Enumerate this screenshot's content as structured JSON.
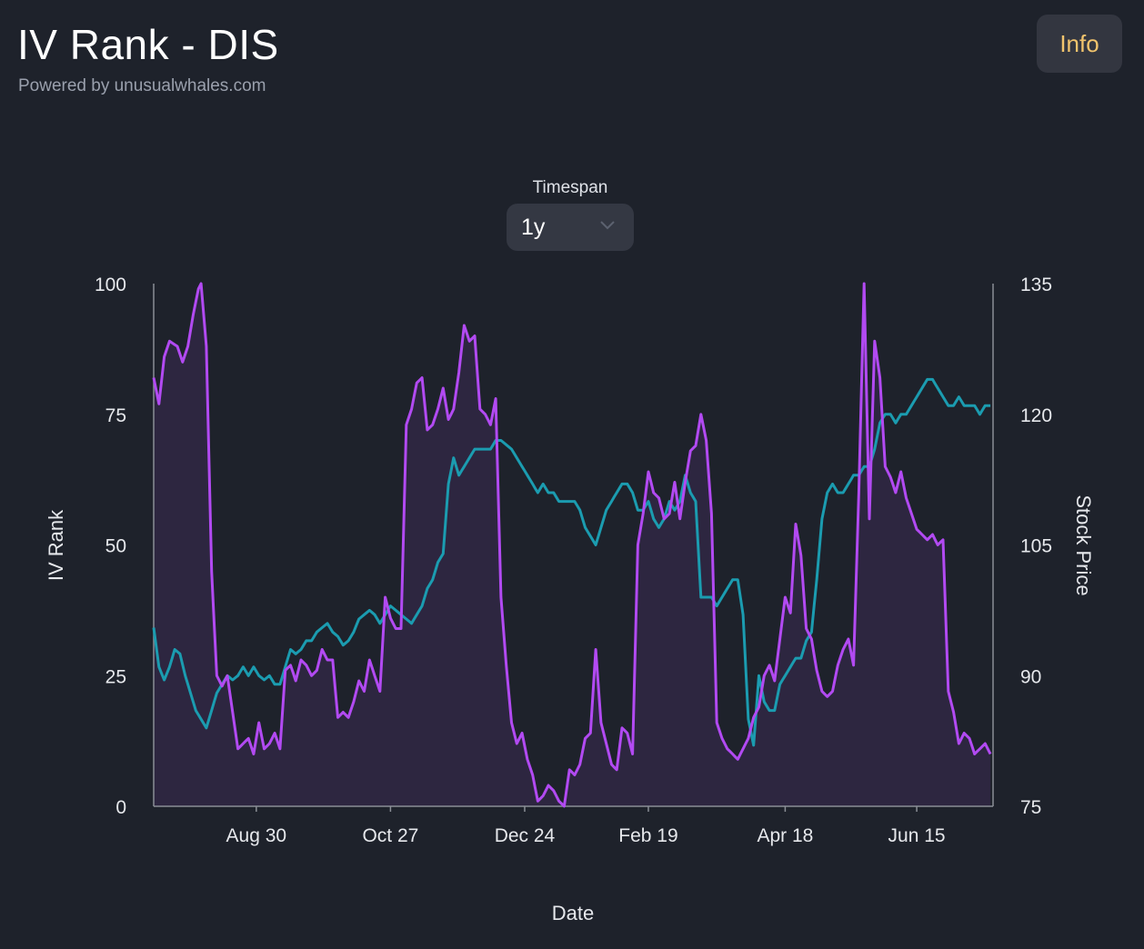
{
  "header": {
    "title": "IV Rank - DIS",
    "subtitle": "Powered by unusualwhales.com",
    "info_label": "Info"
  },
  "controls": {
    "timespan_label": "Timespan",
    "timespan_value": "1y"
  },
  "colors": {
    "background": "#1e222b",
    "iv_rank": "#b24af2",
    "iv_fill": "#2d2640",
    "stock_price": "#1b9cb0",
    "info_text": "#f2c46d"
  },
  "chart_data": {
    "type": "line",
    "title": "IV Rank - DIS",
    "xlabel": "Date",
    "ylabel": "IV Rank",
    "y2label": "Stock Price",
    "ylim": [
      0,
      100
    ],
    "y2lim": [
      75,
      135
    ],
    "yticks": [
      "0",
      "25",
      "50",
      "75",
      "100"
    ],
    "y2ticks": [
      "75",
      "90",
      "105",
      "120",
      "135"
    ],
    "xtick_labels": [
      "Aug 30",
      "Oct 27",
      "Dec 24",
      "Feb 19",
      "Apr 18",
      "Jun 15"
    ],
    "xtick_index": [
      39,
      90,
      141,
      188,
      240,
      290
    ],
    "n_points": 320,
    "series": [
      {
        "name": "IV Rank",
        "axis": "left",
        "area_fill": true,
        "keypoints": [
          [
            0,
            82
          ],
          [
            2,
            77
          ],
          [
            4,
            86
          ],
          [
            6,
            89
          ],
          [
            9,
            88
          ],
          [
            11,
            85
          ],
          [
            13,
            88
          ],
          [
            15,
            94
          ],
          [
            17,
            99
          ],
          [
            18,
            100
          ],
          [
            20,
            88
          ],
          [
            22,
            45
          ],
          [
            24,
            25
          ],
          [
            26,
            23
          ],
          [
            28,
            25
          ],
          [
            30,
            18
          ],
          [
            32,
            11
          ],
          [
            34,
            12
          ],
          [
            36,
            13
          ],
          [
            38,
            10
          ],
          [
            40,
            16
          ],
          [
            42,
            11
          ],
          [
            44,
            12
          ],
          [
            46,
            14
          ],
          [
            48,
            11
          ],
          [
            50,
            26
          ],
          [
            52,
            27
          ],
          [
            54,
            24
          ],
          [
            56,
            28
          ],
          [
            58,
            27
          ],
          [
            60,
            25
          ],
          [
            62,
            26
          ],
          [
            64,
            30
          ],
          [
            66,
            28
          ],
          [
            68,
            28
          ],
          [
            70,
            17
          ],
          [
            72,
            18
          ],
          [
            74,
            17
          ],
          [
            76,
            20
          ],
          [
            78,
            24
          ],
          [
            80,
            22
          ],
          [
            82,
            28
          ],
          [
            84,
            25
          ],
          [
            86,
            22
          ],
          [
            88,
            40
          ],
          [
            90,
            36
          ],
          [
            92,
            34
          ],
          [
            94,
            34
          ],
          [
            96,
            73
          ],
          [
            98,
            76
          ],
          [
            100,
            81
          ],
          [
            102,
            82
          ],
          [
            104,
            72
          ],
          [
            106,
            73
          ],
          [
            108,
            76
          ],
          [
            110,
            80
          ],
          [
            112,
            74
          ],
          [
            114,
            76
          ],
          [
            116,
            83
          ],
          [
            118,
            92
          ],
          [
            120,
            89
          ],
          [
            122,
            90
          ],
          [
            124,
            76
          ],
          [
            126,
            75
          ],
          [
            128,
            73
          ],
          [
            130,
            78
          ],
          [
            132,
            40
          ],
          [
            134,
            27
          ],
          [
            136,
            16
          ],
          [
            138,
            12
          ],
          [
            140,
            14
          ],
          [
            142,
            9
          ],
          [
            144,
            6
          ],
          [
            146,
            1
          ],
          [
            148,
            2
          ],
          [
            150,
            4
          ],
          [
            152,
            3
          ],
          [
            154,
            1
          ],
          [
            156,
            0
          ],
          [
            158,
            7
          ],
          [
            160,
            6
          ],
          [
            162,
            8
          ],
          [
            164,
            13
          ],
          [
            166,
            14
          ],
          [
            168,
            30
          ],
          [
            170,
            16
          ],
          [
            172,
            12
          ],
          [
            174,
            8
          ],
          [
            176,
            7
          ],
          [
            178,
            15
          ],
          [
            180,
            14
          ],
          [
            182,
            10
          ],
          [
            184,
            50
          ],
          [
            186,
            56
          ],
          [
            188,
            64
          ],
          [
            190,
            60
          ],
          [
            192,
            59
          ],
          [
            194,
            55
          ],
          [
            196,
            56
          ],
          [
            198,
            62
          ],
          [
            200,
            55
          ],
          [
            202,
            62
          ],
          [
            204,
            68
          ],
          [
            206,
            69
          ],
          [
            208,
            75
          ],
          [
            210,
            70
          ],
          [
            212,
            56
          ],
          [
            214,
            16
          ],
          [
            216,
            13
          ],
          [
            218,
            11
          ],
          [
            220,
            10
          ],
          [
            222,
            9
          ],
          [
            224,
            11
          ],
          [
            226,
            13
          ],
          [
            228,
            17
          ],
          [
            230,
            19
          ],
          [
            232,
            25
          ],
          [
            234,
            27
          ],
          [
            236,
            24
          ],
          [
            238,
            32
          ],
          [
            240,
            40
          ],
          [
            242,
            37
          ],
          [
            244,
            54
          ],
          [
            246,
            48
          ],
          [
            248,
            34
          ],
          [
            250,
            32
          ],
          [
            252,
            26
          ],
          [
            254,
            22
          ],
          [
            256,
            21
          ],
          [
            258,
            22
          ],
          [
            260,
            27
          ],
          [
            262,
            30
          ],
          [
            264,
            32
          ],
          [
            266,
            27
          ],
          [
            268,
            60
          ],
          [
            270,
            100
          ],
          [
            272,
            55
          ],
          [
            274,
            89
          ],
          [
            276,
            82
          ],
          [
            278,
            65
          ],
          [
            280,
            63
          ],
          [
            282,
            60
          ],
          [
            284,
            64
          ],
          [
            286,
            59
          ],
          [
            288,
            56
          ],
          [
            290,
            53
          ],
          [
            292,
            52
          ],
          [
            294,
            51
          ],
          [
            296,
            52
          ],
          [
            298,
            50
          ],
          [
            300,
            51
          ],
          [
            302,
            22
          ],
          [
            304,
            18
          ],
          [
            306,
            12
          ],
          [
            308,
            14
          ],
          [
            310,
            13
          ],
          [
            312,
            10
          ],
          [
            314,
            11
          ],
          [
            316,
            12
          ],
          [
            318,
            10
          ]
        ]
      },
      {
        "name": "Stock Price",
        "axis": "right",
        "area_fill": false,
        "keypoints": [
          [
            0,
            95.5
          ],
          [
            2,
            91
          ],
          [
            4,
            89.5
          ],
          [
            6,
            91
          ],
          [
            8,
            93
          ],
          [
            10,
            92.5
          ],
          [
            12,
            90
          ],
          [
            14,
            88
          ],
          [
            16,
            86
          ],
          [
            18,
            85
          ],
          [
            20,
            84
          ],
          [
            22,
            86
          ],
          [
            24,
            88
          ],
          [
            26,
            89
          ],
          [
            28,
            90
          ],
          [
            30,
            89.5
          ],
          [
            32,
            90
          ],
          [
            34,
            91
          ],
          [
            36,
            90
          ],
          [
            38,
            91
          ],
          [
            40,
            90
          ],
          [
            42,
            89.5
          ],
          [
            44,
            90
          ],
          [
            46,
            89
          ],
          [
            48,
            89
          ],
          [
            50,
            91
          ],
          [
            52,
            93
          ],
          [
            54,
            92.5
          ],
          [
            56,
            93
          ],
          [
            58,
            94
          ],
          [
            60,
            94
          ],
          [
            62,
            95
          ],
          [
            64,
            95.5
          ],
          [
            66,
            96
          ],
          [
            68,
            95
          ],
          [
            70,
            94.5
          ],
          [
            72,
            93.5
          ],
          [
            74,
            94
          ],
          [
            76,
            95
          ],
          [
            78,
            96.5
          ],
          [
            80,
            97
          ],
          [
            82,
            97.5
          ],
          [
            84,
            97
          ],
          [
            86,
            96
          ],
          [
            88,
            97
          ],
          [
            90,
            98
          ],
          [
            92,
            97.5
          ],
          [
            94,
            97
          ],
          [
            96,
            96.5
          ],
          [
            98,
            96
          ],
          [
            100,
            97
          ],
          [
            102,
            98
          ],
          [
            104,
            100
          ],
          [
            106,
            101
          ],
          [
            108,
            103
          ],
          [
            110,
            104
          ],
          [
            112,
            112
          ],
          [
            114,
            115
          ],
          [
            116,
            113
          ],
          [
            118,
            114
          ],
          [
            120,
            115
          ],
          [
            122,
            116
          ],
          [
            124,
            116
          ],
          [
            126,
            116
          ],
          [
            128,
            116
          ],
          [
            130,
            117
          ],
          [
            132,
            117
          ],
          [
            134,
            116.5
          ],
          [
            136,
            116
          ],
          [
            138,
            115
          ],
          [
            140,
            114
          ],
          [
            142,
            113
          ],
          [
            144,
            112
          ],
          [
            146,
            111
          ],
          [
            148,
            112
          ],
          [
            150,
            111
          ],
          [
            152,
            111
          ],
          [
            154,
            110
          ],
          [
            156,
            110
          ],
          [
            158,
            110
          ],
          [
            160,
            110
          ],
          [
            162,
            109
          ],
          [
            164,
            107
          ],
          [
            166,
            106
          ],
          [
            168,
            105
          ],
          [
            170,
            107
          ],
          [
            172,
            109
          ],
          [
            174,
            110
          ],
          [
            176,
            111
          ],
          [
            178,
            112
          ],
          [
            180,
            112
          ],
          [
            182,
            111
          ],
          [
            184,
            109
          ],
          [
            186,
            109
          ],
          [
            188,
            110
          ],
          [
            190,
            108
          ],
          [
            192,
            107
          ],
          [
            194,
            108
          ],
          [
            196,
            110
          ],
          [
            198,
            109
          ],
          [
            200,
            110
          ],
          [
            202,
            113
          ],
          [
            204,
            111
          ],
          [
            206,
            110
          ],
          [
            208,
            99
          ],
          [
            210,
            99
          ],
          [
            212,
            99
          ],
          [
            214,
            98
          ],
          [
            216,
            99
          ],
          [
            218,
            100
          ],
          [
            220,
            101
          ],
          [
            222,
            101
          ],
          [
            224,
            97
          ],
          [
            226,
            85
          ],
          [
            228,
            82
          ],
          [
            230,
            90
          ],
          [
            232,
            87
          ],
          [
            234,
            86
          ],
          [
            236,
            86
          ],
          [
            238,
            89
          ],
          [
            240,
            90
          ],
          [
            242,
            91
          ],
          [
            244,
            92
          ],
          [
            246,
            92
          ],
          [
            248,
            94
          ],
          [
            250,
            95
          ],
          [
            252,
            101
          ],
          [
            254,
            108
          ],
          [
            256,
            111
          ],
          [
            258,
            112
          ],
          [
            260,
            111
          ],
          [
            262,
            111
          ],
          [
            264,
            112
          ],
          [
            266,
            113
          ],
          [
            268,
            113
          ],
          [
            270,
            114
          ],
          [
            272,
            114
          ],
          [
            274,
            116
          ],
          [
            276,
            119
          ],
          [
            278,
            120
          ],
          [
            280,
            120
          ],
          [
            282,
            119
          ],
          [
            284,
            120
          ],
          [
            286,
            120
          ],
          [
            288,
            121
          ],
          [
            290,
            122
          ],
          [
            292,
            123
          ],
          [
            294,
            124
          ],
          [
            296,
            124
          ],
          [
            298,
            123
          ],
          [
            300,
            122
          ],
          [
            302,
            121
          ],
          [
            304,
            121
          ],
          [
            306,
            122
          ],
          [
            308,
            121
          ],
          [
            310,
            121
          ],
          [
            312,
            121
          ],
          [
            314,
            120
          ],
          [
            316,
            121
          ],
          [
            318,
            121
          ]
        ]
      }
    ],
    "grid": false,
    "legend": "none"
  }
}
